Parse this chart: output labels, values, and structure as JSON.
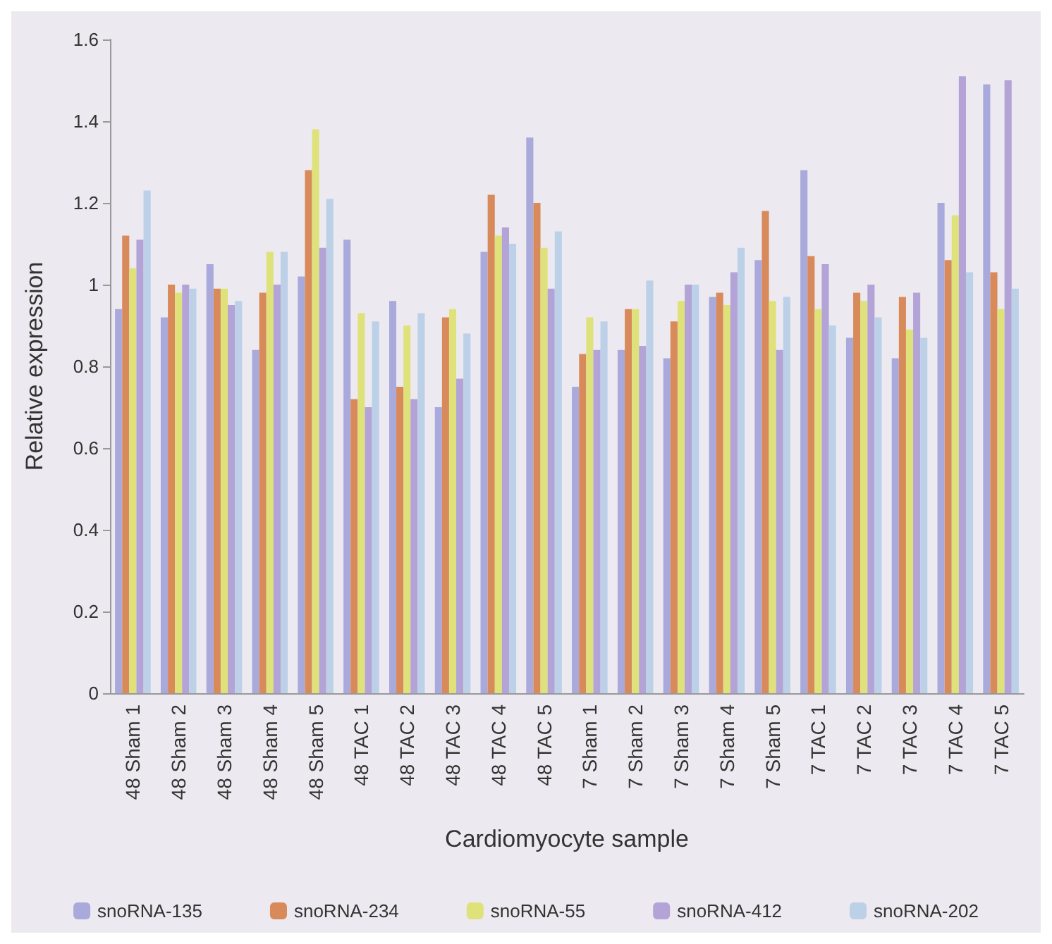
{
  "chart_data": {
    "type": "bar",
    "xlabel": "Cardiomyocyte sample",
    "ylabel": "Relative expression",
    "categories": [
      "48 Sham 1",
      "48 Sham 2",
      "48 Sham 3",
      "48 Sham 4",
      "48 Sham 5",
      "48 TAC 1",
      "48 TAC 2",
      "48 TAC 3",
      "48 TAC 4",
      "48 TAC 5",
      "7 Sham 1",
      "7 Sham 2",
      "7 Sham 3",
      "7 Sham 4",
      "7 Sham 5",
      "7 TAC 1",
      "7 TAC 2",
      "7 TAC 3",
      "7 TAC 4",
      "7 TAC 5"
    ],
    "series": [
      {
        "name": "snoRNA-135",
        "color": "#a9a9dc",
        "values": [
          0.94,
          0.92,
          1.05,
          0.84,
          1.02,
          1.11,
          0.96,
          0.7,
          1.08,
          1.36,
          0.75,
          0.84,
          0.82,
          0.97,
          1.06,
          1.28,
          0.87,
          0.82,
          1.2,
          1.49
        ]
      },
      {
        "name": "snoRNA-234",
        "color": "#d98a5a",
        "values": [
          1.12,
          1.0,
          0.99,
          0.98,
          1.28,
          0.72,
          0.75,
          0.92,
          1.22,
          1.2,
          0.83,
          0.94,
          0.91,
          0.98,
          1.18,
          1.07,
          0.98,
          0.97,
          1.06,
          1.03
        ]
      },
      {
        "name": "snoRNA-55",
        "color": "#dfe27a",
        "values": [
          1.04,
          0.98,
          0.99,
          1.08,
          1.38,
          0.93,
          0.9,
          0.94,
          1.12,
          1.09,
          0.92,
          0.94,
          0.96,
          0.95,
          0.96,
          0.94,
          0.96,
          0.89,
          1.17,
          0.94
        ]
      },
      {
        "name": "snoRNA-412",
        "color": "#b3a3d6",
        "values": [
          1.11,
          1.0,
          0.95,
          1.0,
          1.09,
          0.7,
          0.72,
          0.77,
          1.14,
          0.99,
          0.84,
          0.85,
          1.0,
          1.03,
          0.84,
          1.05,
          1.0,
          0.98,
          1.51,
          1.5
        ]
      },
      {
        "name": "snoRNA-202",
        "color": "#bcd0e8",
        "values": [
          1.23,
          0.99,
          0.96,
          1.08,
          1.21,
          0.91,
          0.93,
          0.88,
          1.1,
          1.13,
          0.91,
          1.01,
          1.0,
          1.09,
          0.97,
          0.9,
          0.92,
          0.87,
          1.03,
          0.99
        ]
      }
    ],
    "ylim": [
      0,
      1.6
    ],
    "yticks": [
      0,
      0.2,
      0.4,
      0.6,
      0.8,
      1,
      1.2,
      1.4,
      1.6
    ],
    "grid": false,
    "legend": "bottom"
  }
}
